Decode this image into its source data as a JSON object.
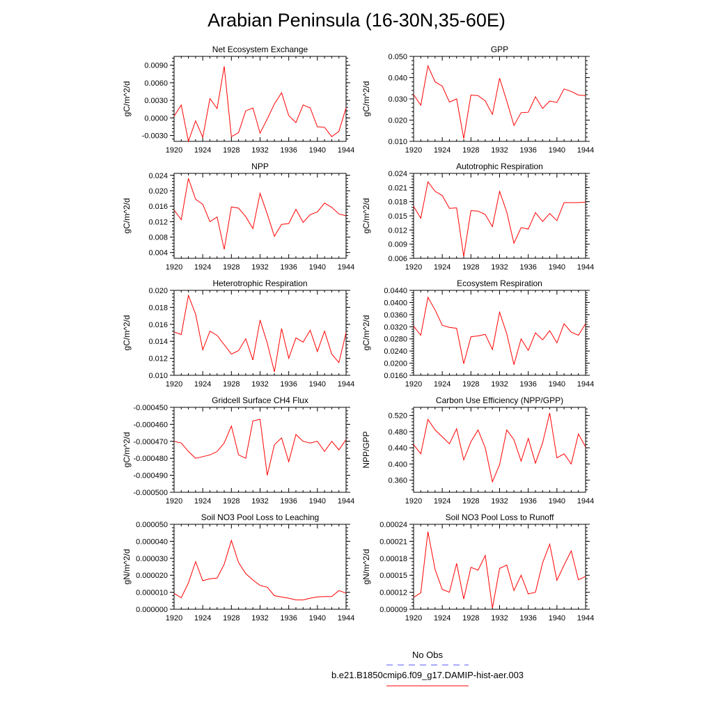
{
  "page_title": "Arabian Peninsula (16-30N,35-60E)",
  "legend": {
    "obs_label": "No Obs",
    "model_label": "b.e21.B1850cmip6.f09_g17.DAMIP-hist-aer.003",
    "obs_color": "#5555ff",
    "model_color": "#ff0000"
  },
  "line_color": "#ff0000",
  "chart_data": [
    {
      "id": "nee",
      "type": "line",
      "title": "Net Ecosystem Exchange",
      "ylabel": "gC/m^2/d",
      "xlabel": "",
      "x": [
        1920,
        1921,
        1922,
        1923,
        1924,
        1925,
        1926,
        1927,
        1928,
        1929,
        1930,
        1931,
        1932,
        1933,
        1934,
        1935,
        1936,
        1937,
        1938,
        1939,
        1940,
        1941,
        1942,
        1943,
        1944
      ],
      "values": [
        0.0003,
        0.0022,
        -0.004,
        -0.0005,
        -0.0033,
        0.0033,
        0.0016,
        0.0088,
        -0.0032,
        -0.0025,
        0.0012,
        0.0017,
        -0.0026,
        -0.0002,
        0.0024,
        0.0043,
        0.0004,
        -0.0008,
        0.0022,
        0.0017,
        -0.0015,
        -0.0016,
        -0.0032,
        -0.0023,
        0.0017
      ],
      "ylim": [
        -0.004,
        0.0105
      ],
      "yticks": [
        "-0.0030",
        "0.0000",
        "0.0030",
        "0.0060",
        "0.0090"
      ],
      "ytick_values": [
        -0.003,
        0,
        0.003,
        0.006,
        0.009
      ],
      "xticks": [
        "1920",
        "1924",
        "1928",
        "1932",
        "1936",
        "1940",
        "1944"
      ]
    },
    {
      "id": "gpp",
      "type": "line",
      "title": "GPP",
      "ylabel": "gC/m^2/d",
      "xlabel": "",
      "x": [
        1920,
        1921,
        1922,
        1923,
        1924,
        1925,
        1926,
        1927,
        1928,
        1929,
        1930,
        1931,
        1932,
        1933,
        1934,
        1935,
        1936,
        1937,
        1938,
        1939,
        1940,
        1941,
        1942,
        1943,
        1944
      ],
      "values": [
        0.032,
        0.027,
        0.0455,
        0.038,
        0.036,
        0.0285,
        0.03,
        0.0113,
        0.0318,
        0.0315,
        0.029,
        0.0227,
        0.0397,
        0.029,
        0.0175,
        0.0235,
        0.0237,
        0.031,
        0.0255,
        0.029,
        0.0283,
        0.0347,
        0.0335,
        0.0318,
        0.0315
      ],
      "ylim": [
        0.01,
        0.05
      ],
      "yticks": [
        "0.010",
        "0.020",
        "0.030",
        "0.040",
        "0.050"
      ],
      "ytick_values": [
        0.01,
        0.02,
        0.03,
        0.04,
        0.05
      ],
      "xticks": [
        "1920",
        "1924",
        "1928",
        "1932",
        "1936",
        "1940",
        "1944"
      ]
    },
    {
      "id": "npp",
      "type": "line",
      "title": "NPP",
      "ylabel": "gC/m^2/d",
      "xlabel": "",
      "x": [
        1920,
        1921,
        1922,
        1923,
        1924,
        1925,
        1926,
        1927,
        1928,
        1929,
        1930,
        1931,
        1932,
        1933,
        1934,
        1935,
        1936,
        1937,
        1938,
        1939,
        1940,
        1941,
        1942,
        1943,
        1944
      ],
      "values": [
        0.015,
        0.0125,
        0.0232,
        0.0178,
        0.0165,
        0.012,
        0.0132,
        0.0048,
        0.0158,
        0.0155,
        0.0133,
        0.0102,
        0.0193,
        0.014,
        0.0082,
        0.0113,
        0.0115,
        0.0152,
        0.0118,
        0.0138,
        0.0145,
        0.0168,
        0.0157,
        0.014,
        0.0135
      ],
      "ylim": [
        0.0025,
        0.0245
      ],
      "yticks": [
        "0.004",
        "0.008",
        "0.012",
        "0.016",
        "0.020",
        "0.024"
      ],
      "ytick_values": [
        0.004,
        0.008,
        0.012,
        0.016,
        0.02,
        0.024
      ],
      "xticks": [
        "1920",
        "1924",
        "1928",
        "1932",
        "1936",
        "1940",
        "1944"
      ]
    },
    {
      "id": "ar",
      "type": "line",
      "title": "Autotrophic Respiration",
      "ylabel": "gC/m^2/d",
      "xlabel": "",
      "x": [
        1920,
        1921,
        1922,
        1923,
        1924,
        1925,
        1926,
        1927,
        1928,
        1929,
        1930,
        1931,
        1932,
        1933,
        1934,
        1935,
        1936,
        1937,
        1938,
        1939,
        1940,
        1941,
        1942,
        1943,
        1944
      ],
      "values": [
        0.017,
        0.0145,
        0.0222,
        0.0202,
        0.0193,
        0.0166,
        0.0167,
        0.0064,
        0.0161,
        0.016,
        0.0153,
        0.0127,
        0.0202,
        0.0158,
        0.0092,
        0.0125,
        0.0122,
        0.0157,
        0.0138,
        0.0155,
        0.014,
        0.0178,
        0.0178,
        0.0178,
        0.0179
      ],
      "ylim": [
        0.006,
        0.024
      ],
      "yticks": [
        "0.006",
        "0.009",
        "0.012",
        "0.015",
        "0.018",
        "0.021",
        "0.024"
      ],
      "ytick_values": [
        0.006,
        0.009,
        0.012,
        0.015,
        0.018,
        0.021,
        0.024
      ],
      "xticks": [
        "1920",
        "1924",
        "1928",
        "1932",
        "1936",
        "1940",
        "1944"
      ]
    },
    {
      "id": "hr",
      "type": "line",
      "title": "Heterotrophic Respiration",
      "ylabel": "gC/m^2/d",
      "xlabel": "",
      "x": [
        1920,
        1921,
        1922,
        1923,
        1924,
        1925,
        1926,
        1927,
        1928,
        1929,
        1930,
        1931,
        1932,
        1933,
        1934,
        1935,
        1936,
        1937,
        1938,
        1939,
        1940,
        1941,
        1942,
        1943,
        1944
      ],
      "values": [
        0.0151,
        0.0148,
        0.0194,
        0.0172,
        0.013,
        0.0152,
        0.0147,
        0.0136,
        0.0125,
        0.0129,
        0.0143,
        0.0118,
        0.0165,
        0.0138,
        0.0104,
        0.0155,
        0.012,
        0.0144,
        0.0139,
        0.0153,
        0.0128,
        0.0152,
        0.0125,
        0.0115,
        0.015
      ],
      "ylim": [
        0.01,
        0.02
      ],
      "yticks": [
        "0.010",
        "0.012",
        "0.014",
        "0.016",
        "0.018",
        "0.020"
      ],
      "ytick_values": [
        0.01,
        0.012,
        0.014,
        0.016,
        0.018,
        0.02
      ],
      "xticks": [
        "1920",
        "1924",
        "1928",
        "1932",
        "1936",
        "1940",
        "1944"
      ]
    },
    {
      "id": "er",
      "type": "line",
      "title": "Ecosystem Respiration",
      "ylabel": "gC/m^2/d",
      "xlabel": "",
      "x": [
        1920,
        1921,
        1922,
        1923,
        1924,
        1925,
        1926,
        1927,
        1928,
        1929,
        1930,
        1931,
        1932,
        1933,
        1934,
        1935,
        1936,
        1937,
        1938,
        1939,
        1940,
        1941,
        1942,
        1943,
        1944
      ],
      "values": [
        0.0322,
        0.0292,
        0.0417,
        0.0375,
        0.0325,
        0.0318,
        0.0315,
        0.0198,
        0.0287,
        0.029,
        0.0295,
        0.0245,
        0.0368,
        0.0297,
        0.0195,
        0.028,
        0.0242,
        0.03,
        0.0277,
        0.0307,
        0.0267,
        0.033,
        0.0302,
        0.0292,
        0.033
      ],
      "ylim": [
        0.016,
        0.044
      ],
      "yticks": [
        "0.0160",
        "0.0200",
        "0.0240",
        "0.0280",
        "0.0320",
        "0.0360",
        "0.0400",
        "0.0440"
      ],
      "ytick_values": [
        0.016,
        0.02,
        0.024,
        0.028,
        0.032,
        0.036,
        0.04,
        0.044
      ],
      "xticks": [
        "1920",
        "1924",
        "1928",
        "1932",
        "1936",
        "1940",
        "1944"
      ]
    },
    {
      "id": "ch4",
      "type": "line",
      "title": "Gridcell Surface CH4 Flux",
      "ylabel": "gC/m^2/d",
      "xlabel": "",
      "x": [
        1920,
        1921,
        1922,
        1923,
        1924,
        1925,
        1926,
        1927,
        1928,
        1929,
        1930,
        1931,
        1932,
        1933,
        1934,
        1935,
        1936,
        1937,
        1938,
        1939,
        1940,
        1941,
        1942,
        1943,
        1944
      ],
      "values": [
        -0.00047,
        -0.000471,
        -0.000476,
        -0.00048,
        -0.000479,
        -0.000478,
        -0.000476,
        -0.000471,
        -0.000461,
        -0.000478,
        -0.00048,
        -0.000458,
        -0.000457,
        -0.00049,
        -0.000472,
        -0.000468,
        -0.000482,
        -0.000466,
        -0.00047,
        -0.000471,
        -0.00047,
        -0.000476,
        -0.00047,
        -0.000475,
        -0.000469
      ],
      "ylim": [
        -0.0005,
        -0.00045
      ],
      "yticks": [
        "-0.000500",
        "-0.000490",
        "-0.000480",
        "-0.000470",
        "-0.000460",
        "-0.000450"
      ],
      "ytick_values": [
        -0.0005,
        -0.00049,
        -0.00048,
        -0.00047,
        -0.00046,
        -0.00045
      ],
      "xticks": [
        "1920",
        "1924",
        "1928",
        "1932",
        "1936",
        "1940",
        "1944"
      ]
    },
    {
      "id": "cue",
      "type": "line",
      "title": "Carbon Use Efficiency (NPP/GPP)",
      "ylabel": "NPP/GPP",
      "xlabel": "",
      "x": [
        1920,
        1921,
        1922,
        1923,
        1924,
        1925,
        1926,
        1927,
        1928,
        1929,
        1930,
        1931,
        1932,
        1933,
        1934,
        1935,
        1936,
        1937,
        1938,
        1939,
        1940,
        1941,
        1942,
        1943,
        1944
      ],
      "values": [
        0.448,
        0.425,
        0.51,
        0.484,
        0.467,
        0.45,
        0.487,
        0.41,
        0.455,
        0.484,
        0.44,
        0.356,
        0.398,
        0.484,
        0.46,
        0.407,
        0.463,
        0.402,
        0.452,
        0.526,
        0.415,
        0.425,
        0.4,
        0.474,
        0.442
      ],
      "ylim": [
        0.33,
        0.54
      ],
      "yticks": [
        "0.360",
        "0.400",
        "0.440",
        "0.480",
        "0.520"
      ],
      "ytick_values": [
        0.36,
        0.4,
        0.44,
        0.48,
        0.52
      ],
      "xticks": [
        "1920",
        "1924",
        "1928",
        "1932",
        "1936",
        "1940",
        "1944"
      ]
    },
    {
      "id": "leach",
      "type": "line",
      "title": "Soil NO3 Pool Loss to Leaching",
      "ylabel": "gN/m^2/d",
      "xlabel": "",
      "x": [
        1920,
        1921,
        1922,
        1923,
        1924,
        1925,
        1926,
        1927,
        1928,
        1929,
        1930,
        1931,
        1932,
        1933,
        1934,
        1935,
        1936,
        1937,
        1938,
        1939,
        1940,
        1941,
        1942,
        1943,
        1944
      ],
      "values": [
        9.3e-06,
        6.8e-06,
        1.55e-05,
        2.8e-05,
        1.68e-05,
        1.8e-05,
        1.83e-05,
        2.65e-05,
        4.05e-05,
        2.75e-05,
        2.1e-05,
        1.72e-05,
        1.4e-05,
        1.3e-05,
        8e-06,
        7.2e-06,
        6.5e-06,
        5.5e-06,
        5.5e-06,
        6.5e-06,
        7.3e-06,
        7.5e-06,
        7.5e-06,
        1.1e-05,
        9.5e-06
      ],
      "ylim": [
        0,
        5e-05
      ],
      "yticks": [
        "0.000000",
        "0.000010",
        "0.000020",
        "0.000030",
        "0.000040",
        "0.000050"
      ],
      "ytick_values": [
        0,
        1e-05,
        2e-05,
        3e-05,
        4e-05,
        5e-05
      ],
      "xticks": [
        "1920",
        "1924",
        "1928",
        "1932",
        "1936",
        "1940",
        "1944"
      ]
    },
    {
      "id": "runoff",
      "type": "line",
      "title": "Soil NO3 Pool Loss to Runoff",
      "ylabel": "gN/m^2/d",
      "xlabel": "",
      "x": [
        1920,
        1921,
        1922,
        1923,
        1924,
        1925,
        1926,
        1927,
        1928,
        1929,
        1930,
        1931,
        1932,
        1933,
        1934,
        1935,
        1936,
        1937,
        1938,
        1939,
        1940,
        1941,
        1942,
        1943,
        1944
      ],
      "values": [
        0.000111,
        0.000119,
        0.000227,
        0.00016,
        0.000125,
        0.00012,
        0.000171,
        0.000108,
        0.000164,
        0.000159,
        0.000185,
        9.2e-05,
        0.000162,
        0.000168,
        0.000123,
        0.00015,
        0.000117,
        0.00012,
        0.000172,
        0.000205,
        0.000141,
        0.000168,
        0.000193,
        0.000142,
        0.000148
      ],
      "ylim": [
        9e-05,
        0.00024
      ],
      "yticks": [
        "0.00009",
        "0.00012",
        "0.00015",
        "0.00018",
        "0.00021",
        "0.00024"
      ],
      "ytick_values": [
        9e-05,
        0.00012,
        0.00015,
        0.00018,
        0.00021,
        0.00024
      ],
      "xticks": [
        "1920",
        "1924",
        "1928",
        "1932",
        "1936",
        "1940",
        "1944"
      ]
    }
  ]
}
